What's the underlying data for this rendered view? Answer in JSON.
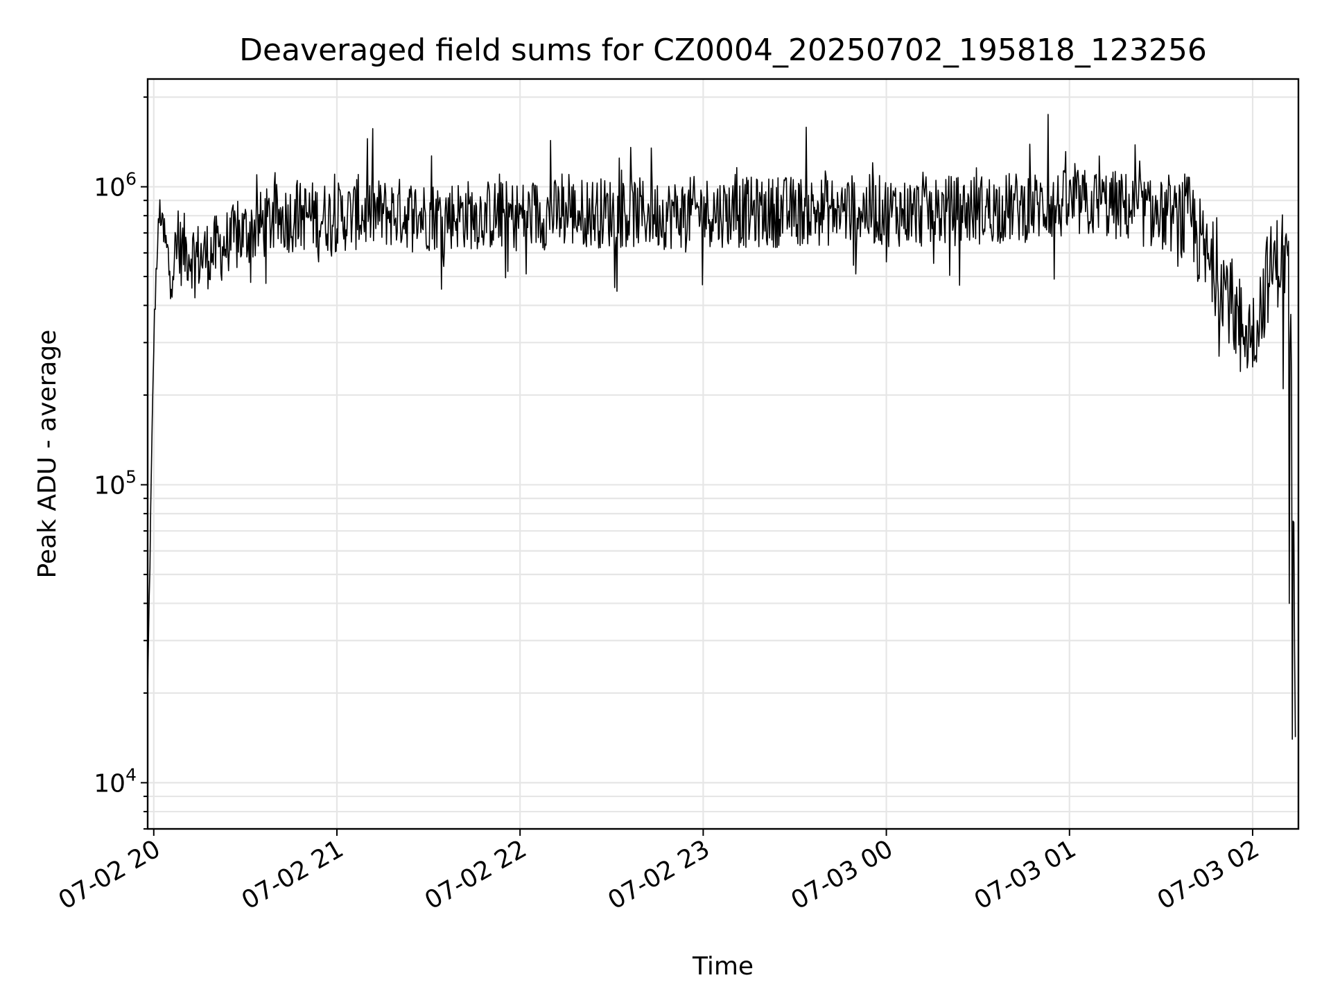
{
  "chart_data": {
    "type": "line",
    "title": "Deaveraged field sums for CZ0004_20250702_195818_123256",
    "xlabel": "Time",
    "ylabel": "Peak ADU - average",
    "yscale": "log",
    "ylim": [
      7000,
      2300000
    ],
    "xlim": [
      "2025-07-02 19:58",
      "2025-07-03 02:15"
    ],
    "grid": true,
    "legend": "none",
    "line_color": "#000000",
    "x_ticks": [
      {
        "t": "2025-07-02 20:00",
        "label": "07-02 20"
      },
      {
        "t": "2025-07-02 21:00",
        "label": "07-02 21"
      },
      {
        "t": "2025-07-02 22:00",
        "label": "07-02 22"
      },
      {
        "t": "2025-07-02 23:00",
        "label": "07-02 23"
      },
      {
        "t": "2025-07-03 00:00",
        "label": "07-03 00"
      },
      {
        "t": "2025-07-03 01:00",
        "label": "07-03 01"
      },
      {
        "t": "2025-07-03 02:00",
        "label": "07-03 02"
      }
    ],
    "y_ticks": [
      {
        "value": 10000,
        "base": "10",
        "exp": "4"
      },
      {
        "value": 100000,
        "base": "10",
        "exp": "5"
      },
      {
        "value": 1000000,
        "base": "10",
        "exp": "6"
      }
    ],
    "series": [
      {
        "x": [
          "2025-07-02 19:58",
          "2025-07-02 19:59",
          "2025-07-02 20:00",
          "2025-07-02 20:01",
          "2025-07-02 20:02",
          "2025-07-02 20:03",
          "2025-07-02 20:05",
          "2025-07-02 20:06",
          "2025-07-02 20:08",
          "2025-07-02 20:10",
          "2025-07-02 20:15",
          "2025-07-02 20:20",
          "2025-07-02 20:30",
          "2025-07-02 20:40",
          "2025-07-02 20:50",
          "2025-07-02 21:00",
          "2025-07-02 21:10",
          "2025-07-02 21:20",
          "2025-07-02 21:30",
          "2025-07-02 21:40",
          "2025-07-02 21:50",
          "2025-07-02 22:00",
          "2025-07-02 22:10",
          "2025-07-02 22:20",
          "2025-07-02 22:30",
          "2025-07-02 22:40",
          "2025-07-02 22:50",
          "2025-07-02 23:00",
          "2025-07-02 23:10",
          "2025-07-02 23:20",
          "2025-07-02 23:30",
          "2025-07-02 23:40",
          "2025-07-02 23:50",
          "2025-07-03 00:00",
          "2025-07-03 00:10",
          "2025-07-03 00:20",
          "2025-07-03 00:30",
          "2025-07-03 00:40",
          "2025-07-03 00:50",
          "2025-07-03 01:00",
          "2025-07-03 01:10",
          "2025-07-03 01:20",
          "2025-07-03 01:25",
          "2025-07-03 01:30",
          "2025-07-03 01:35",
          "2025-07-03 01:40",
          "2025-07-03 01:45",
          "2025-07-03 01:50",
          "2025-07-03 01:55",
          "2025-07-03 02:00",
          "2025-07-03 02:05",
          "2025-07-03 02:08",
          "2025-07-03 02:10",
          "2025-07-03 02:11",
          "2025-07-03 02:12",
          "2025-07-03 02:13",
          "2025-07-03 02:14"
        ],
        "y": [
          20000,
          80000,
          300000,
          600000,
          840000,
          700000,
          540000,
          560000,
          600000,
          620000,
          580000,
          610000,
          700000,
          780000,
          800000,
          790000,
          810000,
          820000,
          800000,
          810000,
          805000,
          800000,
          810000,
          820000,
          820000,
          815000,
          810000,
          830000,
          820000,
          820000,
          830000,
          830000,
          840000,
          830000,
          820000,
          830000,
          840000,
          850000,
          860000,
          870000,
          880000,
          850000,
          820000,
          800000,
          780000,
          760000,
          560000,
          500000,
          360000,
          320000,
          500000,
          560000,
          600000,
          590000,
          480000,
          150000,
          20000
        ]
      }
    ],
    "spikes": [
      {
        "x": "2025-07-02 20:01",
        "y": 530000
      },
      {
        "x": "2025-07-02 20:08",
        "y": 830000
      },
      {
        "x": "2025-07-02 20:47",
        "y": 1050000
      },
      {
        "x": "2025-07-02 20:54",
        "y": 560000
      },
      {
        "x": "2025-07-02 21:07",
        "y": 1100000
      },
      {
        "x": "2025-07-02 21:10",
        "y": 1450000
      },
      {
        "x": "2025-07-02 21:31",
        "y": 1270000
      },
      {
        "x": "2025-07-02 21:35",
        "y": 540000
      },
      {
        "x": "2025-07-02 21:56",
        "y": 520000
      },
      {
        "x": "2025-07-02 22:02",
        "y": 510000
      },
      {
        "x": "2025-07-02 22:10",
        "y": 1430000
      },
      {
        "x": "2025-07-02 22:16",
        "y": 1100000
      },
      {
        "x": "2025-07-02 22:43",
        "y": 1350000
      },
      {
        "x": "2025-07-02 23:11",
        "y": 1160000
      },
      {
        "x": "2025-07-02 23:40",
        "y": 1130000
      },
      {
        "x": "2025-07-02 23:50",
        "y": 510000
      },
      {
        "x": "2025-07-03 00:00",
        "y": 560000
      },
      {
        "x": "2025-07-03 00:12",
        "y": 1120000
      },
      {
        "x": "2025-07-03 00:53",
        "y": 1750000
      },
      {
        "x": "2025-07-03 00:55",
        "y": 490000
      },
      {
        "x": "2025-07-03 01:10",
        "y": 1020000
      },
      {
        "x": "2025-07-03 01:49",
        "y": 270000
      },
      {
        "x": "2025-07-03 01:56",
        "y": 240000
      },
      {
        "x": "2025-07-03 02:03",
        "y": 310000
      },
      {
        "x": "2025-07-03 02:10",
        "y": 210000
      },
      {
        "x": "2025-07-03 02:12",
        "y": 40000
      },
      {
        "x": "2025-07-03 02:13",
        "y": 14000
      }
    ]
  }
}
